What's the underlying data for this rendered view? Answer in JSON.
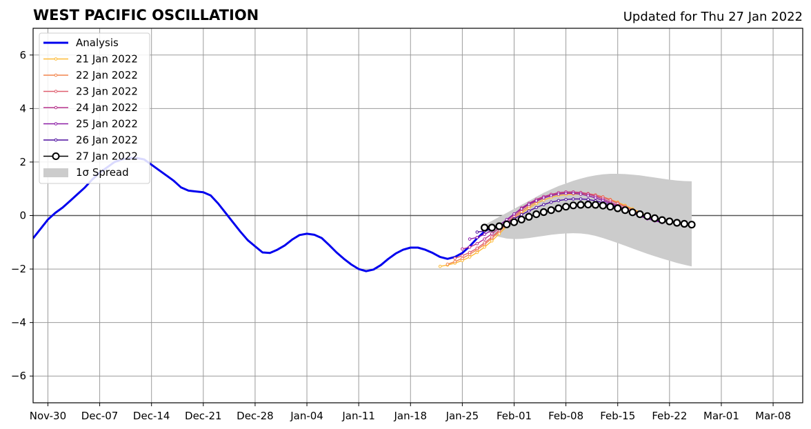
{
  "chart_data": {
    "type": "line",
    "title": "WEST PACIFIC OSCILLATION",
    "subtitle": "Updated for Thu 27 Jan 2022",
    "xlabel": "",
    "ylabel": "",
    "x_ticks": [
      "Nov-30",
      "Dec-07",
      "Dec-14",
      "Dec-21",
      "Dec-28",
      "Jan-04",
      "Jan-11",
      "Jan-18",
      "Jan-25",
      "Feb-01",
      "Feb-08",
      "Feb-15",
      "Feb-22",
      "Mar-01",
      "Mar-08"
    ],
    "x_range": [
      "2021-11-28",
      "2022-03-12"
    ],
    "ylim": [
      -7,
      7
    ],
    "y_ticks": [
      -6,
      -4,
      -2,
      0,
      2,
      4,
      6
    ],
    "y_tick_labels": [
      "−6",
      "−4",
      "−2",
      "0",
      "2",
      "4",
      "6"
    ],
    "grid": true,
    "legend_position": "top-left",
    "analysis": {
      "name": "Analysis",
      "color": "#0000ee",
      "start_date": "2021-11-28",
      "values": [
        -0.85,
        -0.5,
        -0.15,
        0.1,
        0.3,
        0.55,
        0.8,
        1.05,
        1.35,
        1.6,
        1.8,
        2.0,
        2.1,
        2.15,
        2.15,
        2.1,
        1.9,
        1.7,
        1.5,
        1.3,
        1.05,
        0.93,
        0.9,
        0.87,
        0.75,
        0.45,
        0.1,
        -0.25,
        -0.6,
        -0.92,
        -1.15,
        -1.38,
        -1.4,
        -1.28,
        -1.12,
        -0.9,
        -0.73,
        -0.68,
        -0.72,
        -0.84,
        -1.1,
        -1.38,
        -1.62,
        -1.83,
        -2.0,
        -2.08,
        -2.02,
        -1.85,
        -1.62,
        -1.42,
        -1.28,
        -1.2,
        -1.2,
        -1.28,
        -1.4,
        -1.55,
        -1.62,
        -1.55,
        -1.4,
        -1.15,
        -0.85,
        -0.6,
        -0.4
      ]
    },
    "forecasts": [
      {
        "name": "21 Jan 2022",
        "color": "#fdb934",
        "start_date": "2022-01-22",
        "values": [
          -1.9,
          -1.85,
          -1.78,
          -1.68,
          -1.55,
          -1.38,
          -1.18,
          -0.95,
          -0.68,
          -0.4,
          -0.15,
          0.08,
          0.28,
          0.45,
          0.58,
          0.68,
          0.75,
          0.78,
          0.8,
          0.8,
          0.78,
          0.74,
          0.68,
          0.6,
          0.5,
          0.38,
          0.25,
          0.12,
          0.0,
          -0.08,
          -0.15
        ]
      },
      {
        "name": "22 Jan 2022",
        "color": "#f2844b",
        "start_date": "2022-01-23",
        "values": [
          -1.82,
          -1.72,
          -1.6,
          -1.45,
          -1.28,
          -1.08,
          -0.85,
          -0.6,
          -0.33,
          -0.08,
          0.15,
          0.35,
          0.52,
          0.65,
          0.75,
          0.82,
          0.85,
          0.86,
          0.85,
          0.82,
          0.77,
          0.7,
          0.6,
          0.48,
          0.35,
          0.22,
          0.1,
          -0.02,
          -0.1,
          -0.18
        ]
      },
      {
        "name": "23 Jan 2022",
        "color": "#df5e6e",
        "start_date": "2022-01-24",
        "values": [
          -1.6,
          -1.5,
          -1.38,
          -1.22,
          -1.02,
          -0.8,
          -0.55,
          -0.28,
          -0.02,
          0.22,
          0.42,
          0.58,
          0.7,
          0.79,
          0.85,
          0.88,
          0.88,
          0.86,
          0.82,
          0.76,
          0.68,
          0.57,
          0.45,
          0.32,
          0.2,
          0.08,
          -0.04,
          -0.14,
          -0.22
        ]
      },
      {
        "name": "24 Jan 2022",
        "color": "#b6308b",
        "start_date": "2022-01-25",
        "values": [
          -1.25,
          -1.18,
          -1.05,
          -0.88,
          -0.68,
          -0.45,
          -0.2,
          0.05,
          0.28,
          0.46,
          0.6,
          0.71,
          0.79,
          0.85,
          0.88,
          0.88,
          0.85,
          0.8,
          0.72,
          0.62,
          0.5,
          0.38,
          0.25,
          0.12,
          0.0,
          -0.1,
          -0.18,
          -0.25
        ]
      },
      {
        "name": "25 Jan 2022",
        "color": "#8a1ba6",
        "start_date": "2022-01-26",
        "values": [
          -0.88,
          -0.82,
          -0.7,
          -0.55,
          -0.36,
          -0.15,
          0.06,
          0.25,
          0.42,
          0.55,
          0.66,
          0.74,
          0.8,
          0.83,
          0.83,
          0.8,
          0.74,
          0.66,
          0.56,
          0.45,
          0.33,
          0.21,
          0.09,
          -0.02,
          -0.12,
          -0.2,
          -0.26
        ]
      },
      {
        "name": "26 Jan 2022",
        "color": "#4b0c9e",
        "start_date": "2022-01-27",
        "values": [
          -0.62,
          -0.58,
          -0.5,
          -0.4,
          -0.27,
          -0.12,
          0.03,
          0.17,
          0.3,
          0.41,
          0.5,
          0.56,
          0.6,
          0.62,
          0.62,
          0.6,
          0.55,
          0.48,
          0.4,
          0.31,
          0.21,
          0.11,
          0.01,
          -0.08,
          -0.16,
          -0.23
        ]
      },
      {
        "name": "27 Jan 2022",
        "color": "#000000",
        "start_date": "2022-01-28",
        "values": [
          -0.45,
          -0.45,
          -0.4,
          -0.33,
          -0.25,
          -0.15,
          -0.05,
          0.05,
          0.13,
          0.2,
          0.27,
          0.33,
          0.38,
          0.4,
          0.41,
          0.4,
          0.37,
          0.33,
          0.27,
          0.2,
          0.12,
          0.05,
          -0.02,
          -0.1,
          -0.17,
          -0.22,
          -0.27,
          -0.31,
          -0.34
        ]
      }
    ],
    "spread": {
      "name": "1σ Spread",
      "color": "#cccccc",
      "start_date": "2022-01-28",
      "upper": [
        -0.35,
        -0.2,
        -0.05,
        0.1,
        0.25,
        0.4,
        0.55,
        0.7,
        0.85,
        0.98,
        1.1,
        1.2,
        1.3,
        1.38,
        1.45,
        1.5,
        1.54,
        1.56,
        1.56,
        1.55,
        1.53,
        1.5,
        1.46,
        1.42,
        1.38,
        1.34,
        1.31,
        1.29,
        1.28
      ],
      "lower": [
        -0.55,
        -0.7,
        -0.8,
        -0.86,
        -0.88,
        -0.87,
        -0.84,
        -0.8,
        -0.76,
        -0.72,
        -0.69,
        -0.67,
        -0.66,
        -0.67,
        -0.7,
        -0.76,
        -0.84,
        -0.93,
        -1.03,
        -1.13,
        -1.23,
        -1.33,
        -1.43,
        -1.52,
        -1.61,
        -1.69,
        -1.77,
        -1.84,
        -1.9
      ]
    }
  }
}
